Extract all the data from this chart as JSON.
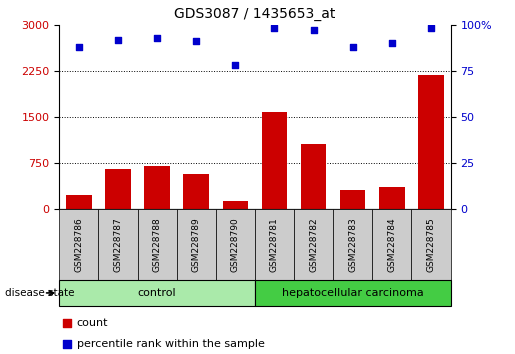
{
  "title": "GDS3087 / 1435653_at",
  "samples": [
    "GSM228786",
    "GSM228787",
    "GSM228788",
    "GSM228789",
    "GSM228790",
    "GSM228781",
    "GSM228782",
    "GSM228783",
    "GSM228784",
    "GSM228785"
  ],
  "counts": [
    230,
    650,
    700,
    560,
    130,
    1580,
    1050,
    310,
    350,
    2180
  ],
  "percentile_ranks": [
    88,
    92,
    93,
    91,
    78,
    98,
    97,
    88,
    90,
    98
  ],
  "bar_color": "#cc0000",
  "dot_color": "#0000cc",
  "ylim_left": [
    0,
    3000
  ],
  "ylim_right": [
    0,
    100
  ],
  "yticks_left": [
    0,
    750,
    1500,
    2250,
    3000
  ],
  "yticks_right": [
    0,
    25,
    50,
    75,
    100
  ],
  "ytick_right_labels": [
    "0",
    "25",
    "50",
    "75",
    "100%"
  ],
  "groups": [
    {
      "label": "control",
      "start": 0,
      "end": 5,
      "color": "#aaeaaa"
    },
    {
      "label": "hepatocellular carcinoma",
      "start": 5,
      "end": 10,
      "color": "#44cc44"
    }
  ],
  "disease_state_label": "disease state",
  "legend_count": "count",
  "legend_percentile": "percentile rank within the sample",
  "grid_color": "black",
  "grid_style": "dotted",
  "tick_label_color_left": "#cc0000",
  "tick_label_color_right": "#0000cc",
  "background_color": "#ffffff",
  "xlabel_area_color": "#cccccc"
}
